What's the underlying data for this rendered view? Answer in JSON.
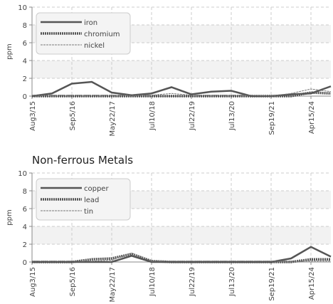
{
  "chart_data": [
    {
      "type": "line",
      "ylabel": "ppm",
      "categories": [
        "Aug3/15",
        null,
        "Sep5/16",
        null,
        "May22/17",
        null,
        "Jul10/18",
        null,
        "Jul22/19",
        null,
        "Jul13/20",
        null,
        "Sep19/21",
        null,
        "Apr15/24",
        null
      ],
      "series": [
        {
          "name": "iron",
          "color": "#555555",
          "style": "solid",
          "values": [
            0,
            0.3,
            1.4,
            1.6,
            0.4,
            0.1,
            0.3,
            1.0,
            0.2,
            0.5,
            0.6,
            0,
            0,
            0.2,
            0.3,
            1.1
          ]
        },
        {
          "name": "chromium",
          "color": "#555555",
          "style": "dotted",
          "values": [
            0,
            0,
            0,
            0,
            0,
            0,
            0,
            0,
            0,
            0,
            0,
            0,
            0,
            0,
            0.4,
            0.3
          ]
        },
        {
          "name": "nickel",
          "color": "#777777",
          "style": "dashed",
          "values": [
            0.1,
            0.1,
            0.1,
            0.1,
            0.1,
            0.1,
            0.1,
            0.3,
            0.1,
            0.1,
            0.1,
            0.1,
            0,
            0.3,
            0.8,
            0.5
          ]
        }
      ],
      "ylim": [
        0,
        10
      ],
      "yticks": [
        0,
        2,
        4,
        6,
        8,
        10
      ],
      "grid": true,
      "bands": true,
      "legend": "upper left"
    },
    {
      "type": "line",
      "title": "Non-ferrous Metals",
      "ylabel": "ppm",
      "categories": [
        "Aug3/15",
        null,
        "Sep5/16",
        null,
        "May22/17",
        null,
        "Jul10/18",
        null,
        "Jul22/19",
        null,
        "Jul13/20",
        null,
        "Sep19/21",
        null,
        "Apr15/24",
        null
      ],
      "series": [
        {
          "name": "copper",
          "color": "#555555",
          "style": "solid",
          "values": [
            0,
            0,
            0,
            0,
            0,
            0.7,
            0,
            0,
            0,
            0,
            0,
            0,
            0,
            0.4,
            1.7,
            0.6
          ]
        },
        {
          "name": "lead",
          "color": "#555555",
          "style": "dotted",
          "values": [
            0,
            0,
            0,
            0.3,
            0.4,
            0.9,
            0.1,
            0,
            0,
            0,
            0,
            0,
            0,
            0,
            0.3,
            0.3
          ]
        },
        {
          "name": "tin",
          "color": "#777777",
          "style": "dashed",
          "values": [
            0.1,
            0.1,
            0.1,
            0.1,
            0.2,
            1.0,
            0.1,
            0.1,
            0.1,
            0.1,
            0.1,
            0.1,
            0.1,
            0.1,
            0.1,
            0.1
          ]
        }
      ],
      "ylim": [
        0,
        10
      ],
      "yticks": [
        0,
        2,
        4,
        6,
        8,
        10
      ],
      "grid": true,
      "bands": true,
      "legend": "upper left"
    }
  ]
}
